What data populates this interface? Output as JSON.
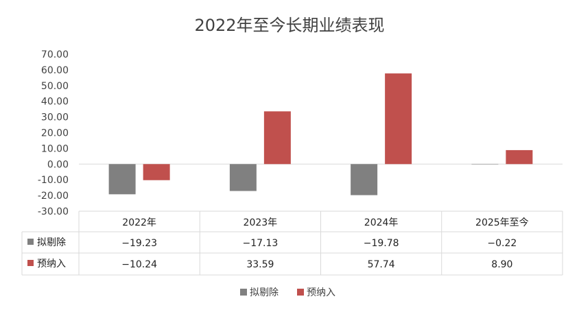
{
  "chart_data": {
    "type": "bar",
    "title": "2022年至今长期业绩表现",
    "categories": [
      "2022年",
      "2023年",
      "2024年",
      "2025年至今"
    ],
    "series": [
      {
        "name": "拟剔除",
        "color": "#808080",
        "values": [
          -19.23,
          -17.13,
          -19.78,
          -0.22
        ],
        "labels": [
          "−19.23",
          "−17.13",
          "−19.78",
          "−0.22"
        ]
      },
      {
        "name": "预纳入",
        "color": "#C0504D",
        "values": [
          -10.24,
          33.59,
          57.74,
          8.9
        ],
        "labels": [
          "−10.24",
          "33.59",
          "57.74",
          "8.90"
        ]
      }
    ],
    "ylim": [
      -30,
      70
    ],
    "yticks": [
      "70.00",
      "60.00",
      "50.00",
      "40.00",
      "30.00",
      "20.00",
      "10.00",
      "0.00",
      "-10.00",
      "-20.00",
      "-30.00"
    ],
    "grid": false,
    "legend_position": "bottom",
    "data_table": true
  }
}
